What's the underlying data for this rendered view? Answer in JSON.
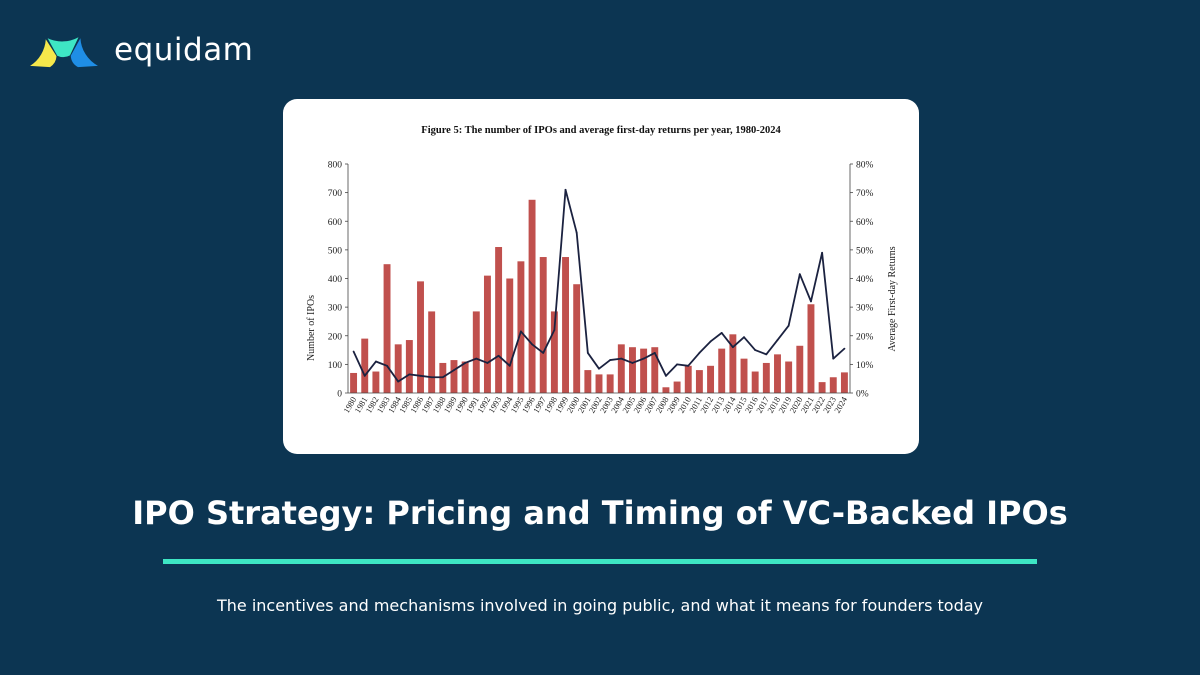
{
  "brand": {
    "name": "equidam",
    "logo_icon": "rainbow-arc-logo-icon",
    "logo_colors": [
      "#f6e84b",
      "#3ee6c4",
      "#1f8ee6"
    ]
  },
  "article": {
    "title": "IPO Strategy: Pricing and Timing of VC-Backed IPOs",
    "subtitle": "The incentives and mechanisms involved in going public, and what it means for founders today"
  },
  "colors": {
    "background": "#0c3552",
    "accent": "#3ee6c4",
    "bar": "#c0504d",
    "line": "#1b2240"
  },
  "chart_data": {
    "type": "bar",
    "title": "Figure 5: The number of IPOs and average first-day returns per year, 1980-2024",
    "ylabel": "Number of IPOs",
    "y2label": "Average First-day Returns",
    "ylim": [
      0,
      800
    ],
    "y2lim": [
      0,
      80
    ],
    "yticks": [
      "0",
      "100",
      "200",
      "300",
      "400",
      "500",
      "600",
      "700",
      "800"
    ],
    "y2ticks": [
      "0%",
      "10%",
      "20%",
      "30%",
      "40%",
      "50%",
      "60%",
      "70%",
      "80%"
    ],
    "categories": [
      "1980",
      "1981",
      "1982",
      "1983",
      "1984",
      "1985",
      "1986",
      "1987",
      "1988",
      "1989",
      "1990",
      "1991",
      "1992",
      "1993",
      "1994",
      "1995",
      "1996",
      "1997",
      "1998",
      "1999",
      "2000",
      "2001",
      "2002",
      "2003",
      "2004",
      "2005",
      "2006",
      "2007",
      "2008",
      "2009",
      "2010",
      "2011",
      "2012",
      "2013",
      "2014",
      "2015",
      "2016",
      "2017",
      "2018",
      "2019",
      "2020",
      "2021",
      "2022",
      "2023",
      "2024"
    ],
    "series": [
      {
        "name": "Number of IPOs",
        "type": "bar",
        "values": [
          70,
          190,
          75,
          450,
          170,
          185,
          390,
          285,
          105,
          115,
          110,
          285,
          410,
          510,
          400,
          460,
          675,
          475,
          285,
          475,
          380,
          80,
          65,
          65,
          170,
          160,
          155,
          160,
          20,
          40,
          95,
          80,
          95,
          155,
          205,
          120,
          75,
          105,
          135,
          110,
          165,
          310,
          38,
          55,
          72
        ]
      },
      {
        "name": "Average First-day Returns",
        "type": "line",
        "values": [
          14.5,
          6,
          11,
          9.5,
          4,
          6.5,
          6,
          5.5,
          5.5,
          8,
          10.5,
          12,
          10.5,
          13,
          9.5,
          21.5,
          17,
          14,
          22,
          71,
          56,
          14,
          8.5,
          11.5,
          12,
          10.5,
          12,
          14,
          6,
          10,
          9.5,
          14,
          18,
          21,
          16,
          19.5,
          15,
          13.5,
          18.5,
          23.5,
          41.5,
          32,
          49,
          12,
          15.5
        ]
      }
    ]
  }
}
